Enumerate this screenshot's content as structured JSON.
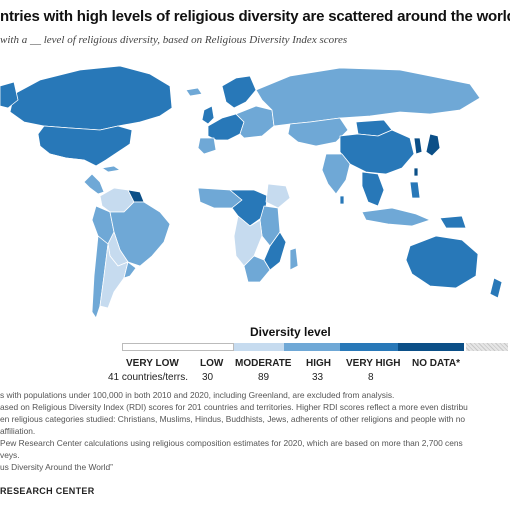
{
  "header": {
    "title": "ntries with high levels of religious diversity are scattered around the world",
    "subtitle": "with a __ level of religious diversity, based on Religious Diversity Index scores"
  },
  "legend": {
    "title": "Diversity level",
    "levels": [
      {
        "label": "VERY LOW",
        "count": "41 countries/terrs.",
        "color": "#ffffff"
      },
      {
        "label": "LOW",
        "count": "30",
        "color": "#c6dbef"
      },
      {
        "label": "MODERATE",
        "count": "89",
        "color": "#6fa8d6"
      },
      {
        "label": "HIGH",
        "count": "33",
        "color": "#2878b8"
      },
      {
        "label": "VERY HIGH",
        "count": "8",
        "color": "#0b4f87"
      },
      {
        "label": "NO DATA*",
        "count": "",
        "color": "#e6e6e6"
      }
    ]
  },
  "notes": [
    "s with populations under 100,000 in both 2010 and 2020, including Greenland, are excluded from analysis.",
    "ased on Religious Diversity Index (RDI) scores for 201 countries and territories. Higher RDI scores reflect a more even distribu",
    "en religious categories studied: Christians, Muslims, Hindus, Buddhists, Jews, adherents of other religions and people with no",
    "affiliation.",
    "Pew Research Center calculations using religious composition estimates for 2020, which are based on more than 2,700 cens",
    "veys.",
    "us Diversity Around the World”"
  ],
  "source": "RESEARCH CENTER",
  "colors": {
    "very_low": "#ffffff",
    "low": "#c6dbef",
    "moderate": "#6fa8d6",
    "high": "#2878b8",
    "very_high": "#0b4f87",
    "no_data": "#e6e6e6",
    "border": "#ffffff"
  }
}
